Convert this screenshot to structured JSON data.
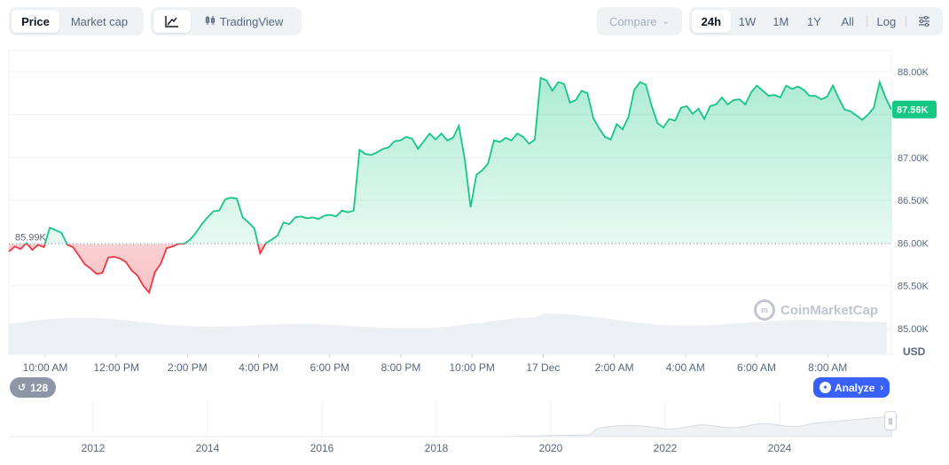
{
  "toolbar": {
    "price_label": "Price",
    "marketcap_label": "Market cap",
    "line_icon": "line-chart-icon",
    "tradingview_label": "TradingView",
    "compare_label": "Compare",
    "ranges": [
      "24h",
      "1W",
      "1M",
      "1Y",
      "All"
    ],
    "active_range": "24h",
    "log_label": "Log",
    "settings_icon": "sliders-icon"
  },
  "chart_data": {
    "type": "line",
    "ylabel": "",
    "unit": "USD",
    "ylim": [
      84700,
      88250
    ],
    "y_ticks": [
      {
        "value": 88000,
        "label": "88.00K"
      },
      {
        "value": 87500,
        "label": "87.50K"
      },
      {
        "value": 87000,
        "label": "87.00K"
      },
      {
        "value": 86500,
        "label": "86.50K"
      },
      {
        "value": 86000,
        "label": "86.00K"
      },
      {
        "value": 85500,
        "label": "85.50K"
      },
      {
        "value": 85000,
        "label": "85.00K"
      }
    ],
    "x_ticks": [
      "10:00 AM",
      "12:00 PM",
      "2:00 PM",
      "4:00 PM",
      "6:00 PM",
      "8:00 PM",
      "10:00 PM",
      "17 Dec",
      "2:00 AM",
      "4:00 AM",
      "6:00 AM",
      "8:00 AM"
    ],
    "baseline": {
      "value": 85990,
      "label": "85.99K"
    },
    "current": {
      "value": 87560,
      "label": "87.56K"
    },
    "colors": {
      "up": "#16c784",
      "down": "#ea3943",
      "current_tag": "#16c784"
    },
    "series": [
      {
        "values": [
          85900,
          85960,
          85930,
          86000,
          85920,
          85980,
          85950,
          86180,
          86150,
          86120,
          85980,
          85950,
          85850,
          85750,
          85700,
          85640,
          85650,
          85830,
          85840,
          85820,
          85780,
          85680,
          85620,
          85500,
          85420,
          85660,
          85760,
          85940,
          85960,
          85990,
          85990,
          86040,
          86120,
          86220,
          86300,
          86370,
          86380,
          86510,
          86530,
          86520,
          86300,
          86240,
          86170,
          85880,
          86000,
          86040,
          86090,
          86240,
          86220,
          86300,
          86310,
          86290,
          86300,
          86280,
          86320,
          86330,
          86310,
          86380,
          86360,
          86380,
          87090,
          87040,
          87030,
          87060,
          87100,
          87120,
          87190,
          87200,
          87240,
          87220,
          87100,
          87190,
          87280,
          87210,
          87280,
          87200,
          87230,
          87370,
          86980,
          86420,
          86800,
          86850,
          86930,
          87200,
          87180,
          87230,
          87200,
          87280,
          87240,
          87160,
          87210,
          87930,
          87900,
          87780,
          87880,
          87860,
          87640,
          87670,
          87780,
          87750,
          87460,
          87340,
          87240,
          87210,
          87390,
          87330,
          87470,
          87790,
          87880,
          87850,
          87600,
          87400,
          87350,
          87450,
          87430,
          87580,
          87600,
          87510,
          87570,
          87450,
          87600,
          87620,
          87700,
          87620,
          87670,
          87680,
          87620,
          87760,
          87840,
          87780,
          87720,
          87730,
          87700,
          87840,
          87800,
          87830,
          87790,
          87720,
          87720,
          87680,
          87710,
          87840,
          87690,
          87560,
          87540,
          87490,
          87440,
          87500,
          87580,
          87880,
          87700,
          87560
        ]
      }
    ]
  },
  "navigator": {
    "years": [
      "2012",
      "2014",
      "2016",
      "2018",
      "2020",
      "2022",
      "2024"
    ]
  },
  "badges": {
    "history_count": "128",
    "history_icon": "history-icon",
    "analyze_label": "Analyze",
    "analyze_icon": "analyze-icon"
  },
  "watermark": {
    "text": "CoinMarketCap",
    "icon": "coinmarketcap-logo-icon"
  }
}
